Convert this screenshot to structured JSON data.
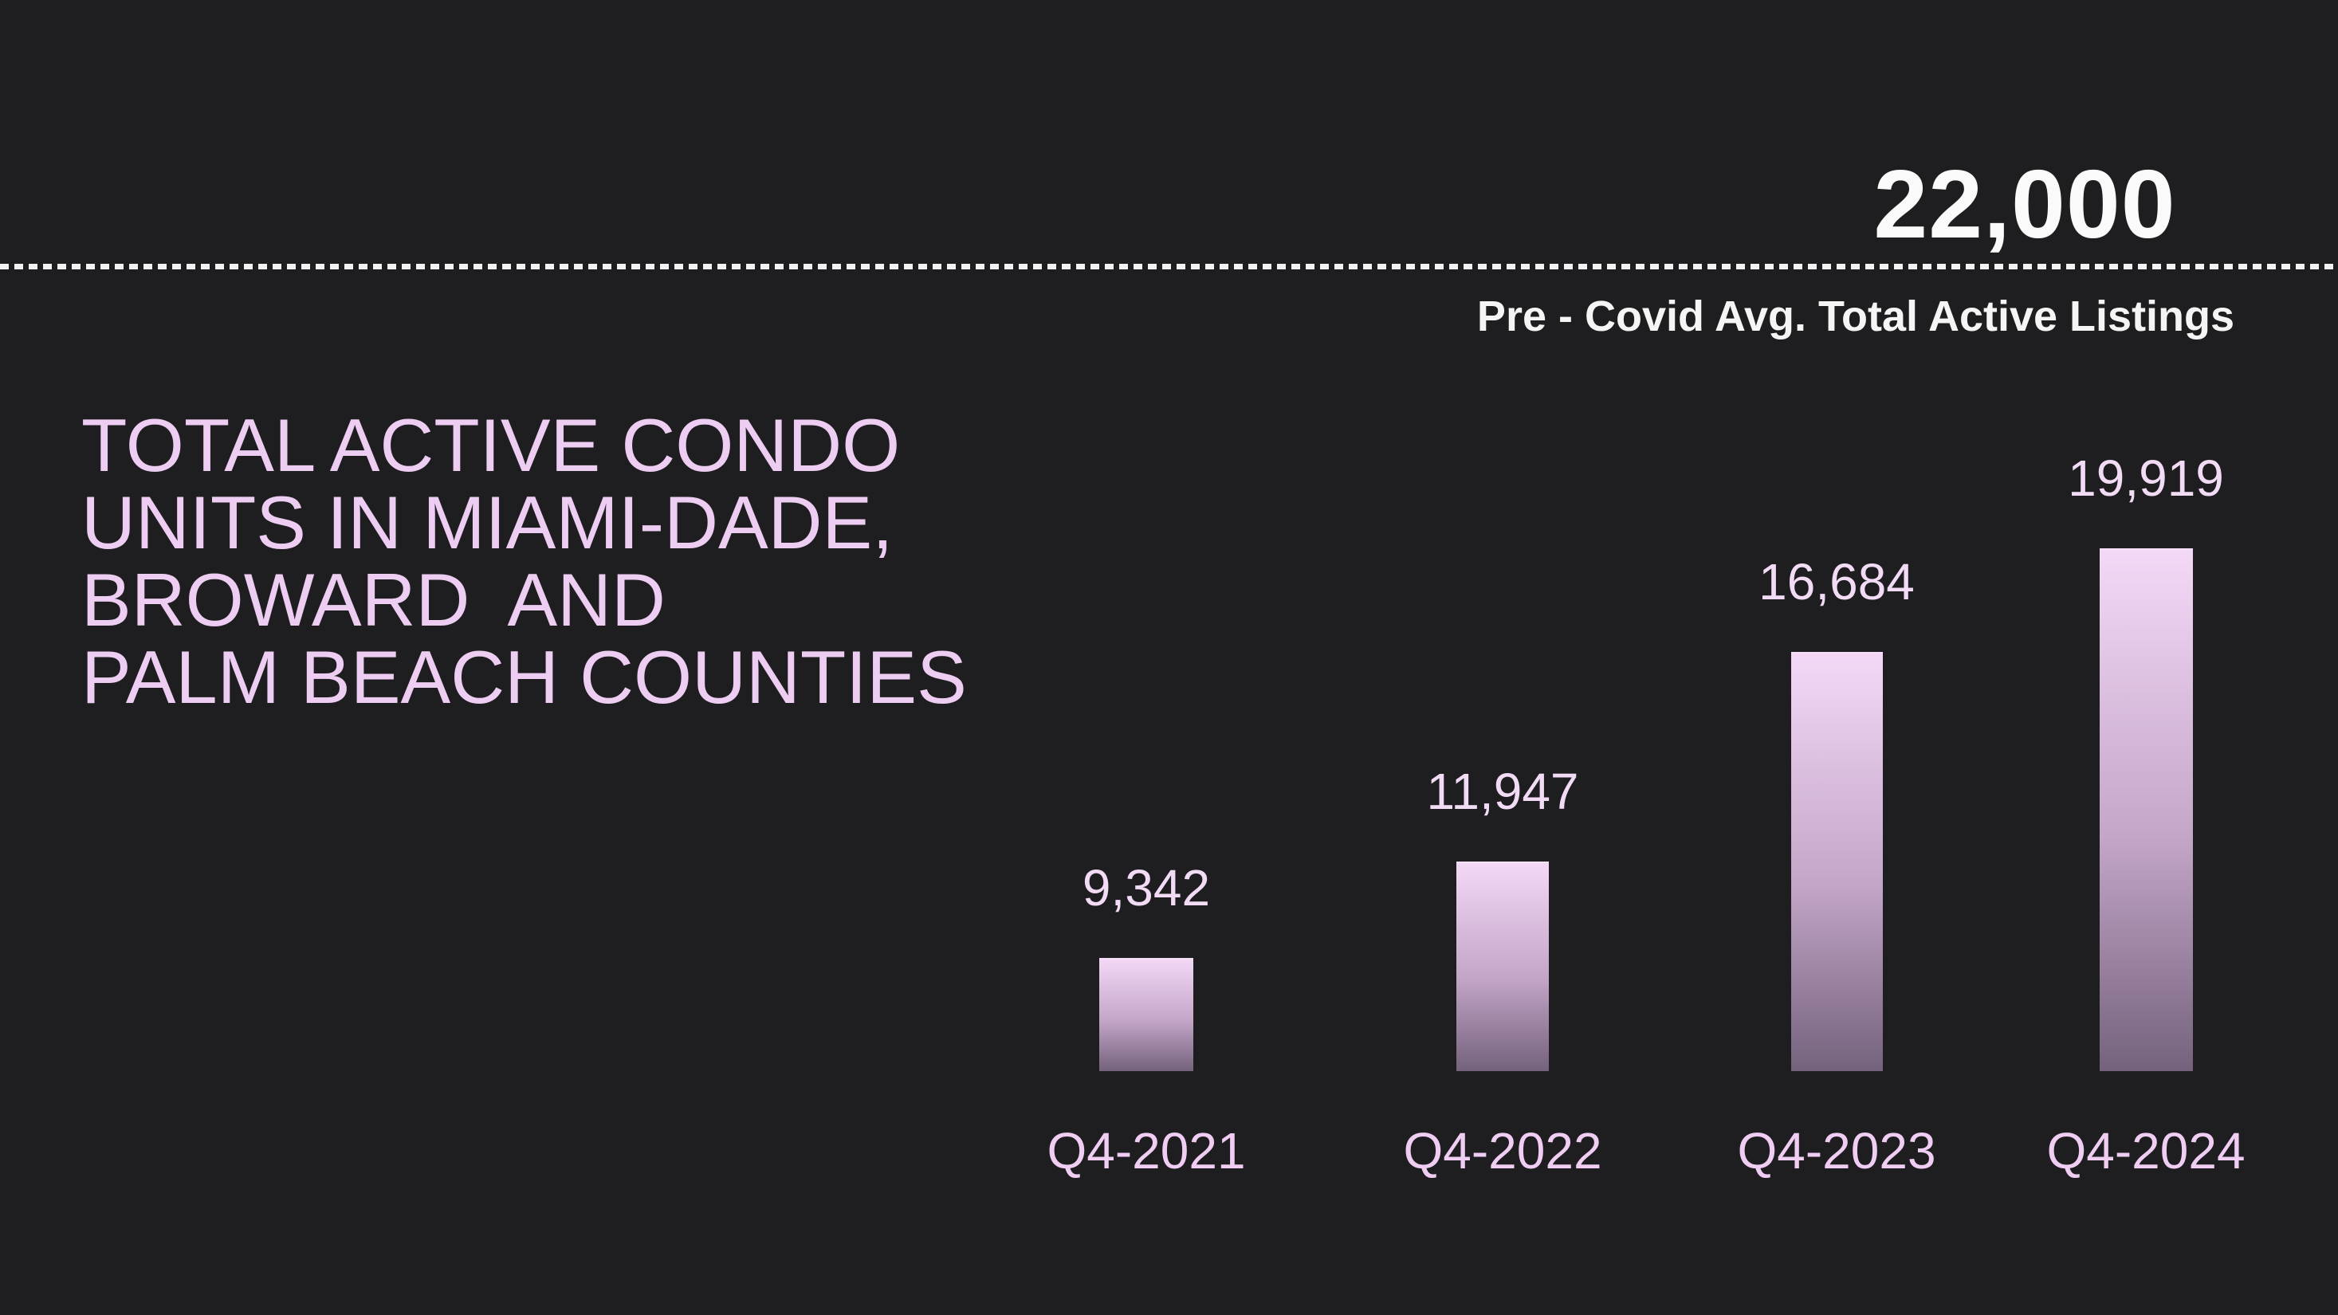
{
  "canvas": {
    "background_color": "#1e1d1f"
  },
  "title": {
    "lines": [
      "TOTAL ACTIVE CONDO",
      "UNITS IN MIAMI-DADE,",
      "BROWARD  AND",
      "PALM BEACH COUNTIES"
    ],
    "color": "#eecdf2"
  },
  "chart_data": {
    "type": "bar",
    "categories": [
      "Q4-2021",
      "Q4-2022",
      "Q4-2023",
      "Q4-2024"
    ],
    "values": [
      9342,
      11947,
      16684,
      19919
    ],
    "value_labels": [
      "9,342",
      "11,947",
      "16,684",
      "19,919"
    ],
    "title": "TOTAL ACTIVE CONDO UNITS IN MIAMI-DADE, BROWARD AND PALM BEACH COUNTIES",
    "xlabel": "",
    "ylabel": "",
    "legend": "none",
    "grid": "off",
    "reference_line": {
      "value": 22000,
      "label": "22,000",
      "caption": "Pre - Covid Avg. Total Active Listings",
      "style": "dashed",
      "color": "#f2f2f2"
    },
    "bar_gradient_top": "#f4d9f7",
    "bar_gradient_bottom": "#74627c",
    "value_label_color": "#f2dbf5",
    "category_label_color": "#f0cdf3",
    "background_color": "#1e1d1f"
  }
}
